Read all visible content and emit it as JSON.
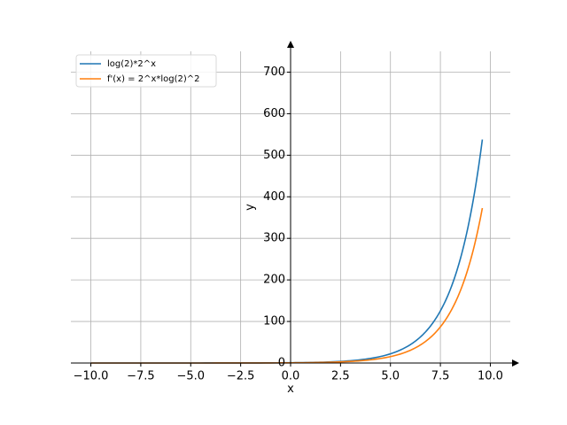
{
  "chart_data": {
    "type": "line",
    "title": "",
    "xlabel": "x",
    "ylabel": "y",
    "xlim": [
      -11.0,
      11.0
    ],
    "ylim": [
      0,
      750
    ],
    "x_ticks": [
      -10.0,
      -7.5,
      -5.0,
      -2.5,
      0.0,
      2.5,
      5.0,
      7.5,
      10.0
    ],
    "x_tick_labels": [
      "−10.0",
      "−7.5",
      "−5.0",
      "−2.5",
      "0.0",
      "2.5",
      "5.0",
      "7.5",
      "10.0"
    ],
    "y_ticks": [
      0,
      100,
      200,
      300,
      400,
      500,
      600,
      700
    ],
    "y_tick_labels": [
      "0",
      "100",
      "200",
      "300",
      "400",
      "500",
      "600",
      "700"
    ],
    "grid": true,
    "legend_position": "top-left",
    "axes_through_origin": true,
    "series": [
      {
        "name": "log(2)*2^x",
        "color": "#1f77b4",
        "x": [
          -10.0,
          -8.0,
          -6.0,
          -4.0,
          -2.0,
          0.0,
          1.0,
          2.0,
          3.0,
          4.0,
          5.0,
          6.0,
          6.5,
          7.0,
          7.5,
          8.0,
          8.5,
          9.0,
          9.3,
          9.6
        ],
        "y": [
          0.0007,
          0.0027,
          0.0108,
          0.0433,
          0.173,
          0.693,
          1.39,
          2.77,
          5.55,
          11.1,
          22.2,
          44.4,
          62.7,
          88.7,
          125.5,
          177.4,
          250.9,
          354.9,
          436.9,
          537.9
        ]
      },
      {
        "name": "f'(x) = 2^x*log(2)^2",
        "color": "#ff7f0e",
        "x": [
          -10.0,
          -8.0,
          -6.0,
          -4.0,
          -2.0,
          0.0,
          1.0,
          2.0,
          3.0,
          4.0,
          5.0,
          6.0,
          6.5,
          7.0,
          7.5,
          8.0,
          8.5,
          9.0,
          9.3,
          9.6
        ],
        "y": [
          0.0005,
          0.0019,
          0.0075,
          0.03,
          0.12,
          0.48,
          0.96,
          1.92,
          3.84,
          7.69,
          15.4,
          30.7,
          43.5,
          61.5,
          87.0,
          123.0,
          173.9,
          246.0,
          302.9,
          372.9
        ]
      }
    ]
  }
}
